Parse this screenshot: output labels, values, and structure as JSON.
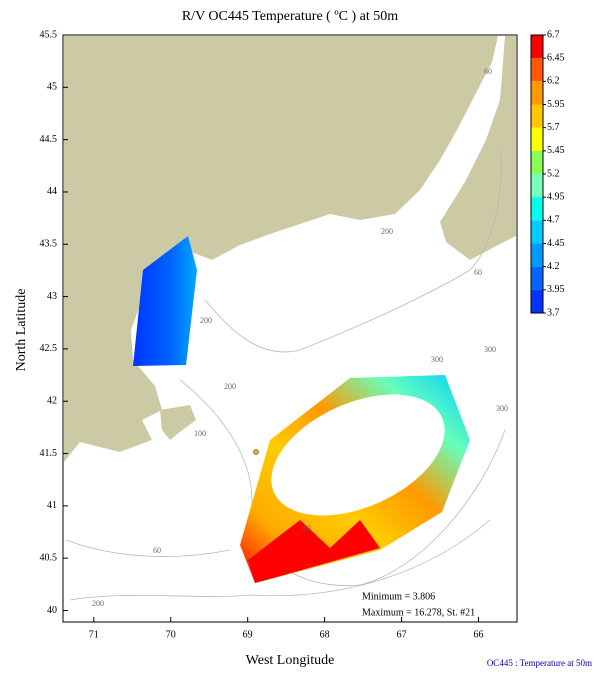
{
  "title": "R/V OC445 Temperature ( ºC ) at 50m",
  "x_axis": {
    "label": "West Longitude",
    "lim": [
      71.4,
      65.5
    ],
    "ticks": [
      71,
      70,
      69,
      68,
      67,
      66
    ]
  },
  "y_axis": {
    "label": "North Latitude",
    "lim": [
      39.89,
      45.5
    ],
    "ticks": [
      40,
      40.5,
      41,
      41.5,
      42,
      42.5,
      43,
      43.5,
      44,
      44.5,
      45,
      45.5
    ]
  },
  "colorbar": {
    "ticks": [
      6.7,
      6.45,
      6.2,
      5.95,
      5.7,
      5.45,
      5.2,
      4.95,
      4.7,
      4.45,
      4.2,
      3.95,
      3.7
    ],
    "colors": [
      "#ff0000",
      "#ff5a00",
      "#ff9900",
      "#ffc800",
      "#ffff00",
      "#88ff55",
      "#77ffbb",
      "#00ffee",
      "#00ccff",
      "#0099ff",
      "#0066ff",
      "#0033ff"
    ]
  },
  "contour_labels": [
    "60",
    "200",
    "60",
    "200",
    "300",
    "300",
    "200",
    "300",
    "100",
    "60",
    "60",
    "200"
  ],
  "stats": {
    "minimum": "Minimum = 3.806",
    "maximum": "Maximum = 16.278, St. #21"
  },
  "footer": "OC445 : Temperature at 50m"
}
